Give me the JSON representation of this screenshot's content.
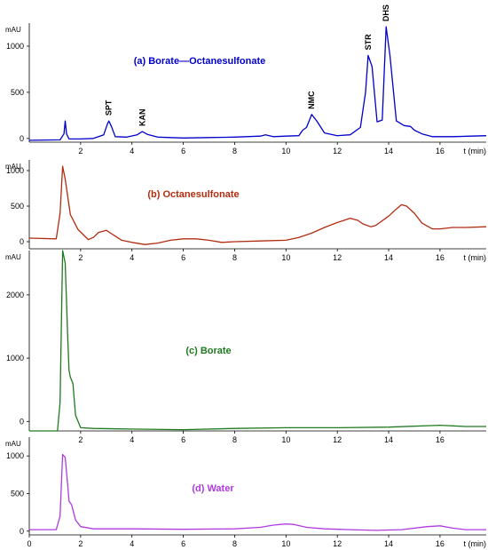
{
  "chart_data": [
    {
      "type": "line",
      "title": "(a) Borate—Octanesulfonate",
      "ylabel": "mAU",
      "xlabel": "t (min)",
      "color": "#0000cc",
      "xlim": [
        0,
        17.8
      ],
      "ylim": [
        -40,
        1250
      ],
      "yticks": [
        0,
        500,
        1000
      ],
      "xticks": [
        2,
        4,
        6,
        8,
        10,
        12,
        14,
        16
      ],
      "x_axis_label_visible": true,
      "peaks": [
        {
          "label": "SPT",
          "x": 3.1,
          "y": 190
        },
        {
          "label": "KAN",
          "x": 4.4,
          "y": 75
        },
        {
          "label": "NMC",
          "x": 11.0,
          "y": 260
        },
        {
          "label": "STR",
          "x": 13.2,
          "y": 900
        },
        {
          "label": "DHS",
          "x": 13.9,
          "y": 1210
        }
      ],
      "x": [
        0,
        1.2,
        1.35,
        1.4,
        1.45,
        1.55,
        2.0,
        2.5,
        2.9,
        3.05,
        3.1,
        3.2,
        3.35,
        3.8,
        4.2,
        4.4,
        4.6,
        5.0,
        6.0,
        7.0,
        8.0,
        9.0,
        9.2,
        9.5,
        10.0,
        10.5,
        10.65,
        10.8,
        11.0,
        11.2,
        11.5,
        12.0,
        12.5,
        12.9,
        13.1,
        13.2,
        13.35,
        13.55,
        13.75,
        13.9,
        14.05,
        14.3,
        14.6,
        14.85,
        15.0,
        15.3,
        15.7,
        16.5,
        17.8
      ],
      "series": [
        {
          "values": [
            -20,
            -15,
            50,
            190,
            50,
            -5,
            -5,
            0,
            40,
            160,
            190,
            130,
            20,
            15,
            40,
            75,
            45,
            15,
            5,
            10,
            15,
            25,
            40,
            20,
            25,
            30,
            90,
            120,
            260,
            190,
            60,
            30,
            40,
            120,
            500,
            900,
            780,
            180,
            200,
            1210,
            900,
            190,
            140,
            130,
            90,
            50,
            20,
            20,
            30
          ]
        }
      ]
    },
    {
      "type": "line",
      "title": "(b) Octanesulfonate",
      "ylabel": "mAU",
      "xlabel": "t (min)",
      "color": "#b22c10",
      "xlim": [
        0,
        17.8
      ],
      "ylim": [
        -100,
        1150
      ],
      "yticks": [
        0,
        500,
        1000
      ],
      "xticks": [
        2,
        4,
        6,
        8,
        10,
        12,
        14,
        16
      ],
      "x_axis_label_visible": true,
      "x": [
        0,
        1.05,
        1.2,
        1.3,
        1.4,
        1.6,
        1.9,
        2.3,
        2.5,
        2.7,
        3.0,
        3.3,
        3.6,
        4.0,
        4.5,
        5.0,
        5.5,
        6.0,
        6.5,
        7.0,
        7.5,
        8.0,
        9.0,
        10.0,
        10.5,
        11.0,
        11.5,
        12.0,
        12.5,
        12.8,
        13.0,
        13.3,
        13.5,
        14.0,
        14.3,
        14.5,
        14.7,
        15.0,
        15.3,
        15.7,
        16.0,
        16.5,
        17.0,
        17.8
      ],
      "series": [
        {
          "values": [
            50,
            40,
            400,
            1060,
            880,
            380,
            170,
            30,
            60,
            130,
            160,
            90,
            20,
            -10,
            -40,
            -20,
            20,
            40,
            40,
            20,
            -10,
            0,
            10,
            20,
            60,
            120,
            200,
            270,
            330,
            300,
            250,
            210,
            230,
            360,
            460,
            520,
            500,
            400,
            260,
            180,
            180,
            200,
            200,
            210
          ]
        }
      ]
    },
    {
      "type": "line",
      "title": "(c) Borate",
      "ylabel": "mAU",
      "xlabel": "t (min)",
      "color": "#1f7a1f",
      "xlim": [
        0,
        17.8
      ],
      "ylim": [
        -150,
        2700
      ],
      "yticks": [
        0,
        1000,
        2000
      ],
      "xticks": [
        2,
        4,
        6,
        8,
        10,
        12,
        14,
        16
      ],
      "x_axis_label_visible": false,
      "x": [
        0,
        1.1,
        1.2,
        1.3,
        1.4,
        1.5,
        1.55,
        1.6,
        1.7,
        1.8,
        2.0,
        2.5,
        4.0,
        6.0,
        8.0,
        10.0,
        12.0,
        14.0,
        16.0,
        17.0,
        17.8
      ],
      "series": [
        {
          "values": [
            -150,
            -150,
            300,
            2700,
            2500,
            1300,
            800,
            700,
            600,
            100,
            -100,
            -110,
            -120,
            -130,
            -110,
            -100,
            -100,
            -90,
            -60,
            -80,
            -80
          ]
        }
      ]
    },
    {
      "type": "line",
      "title": "(d) Water",
      "ylabel": "mAU",
      "xlabel": "t (min)",
      "color": "#b03ae0",
      "xlim": [
        0,
        17.8
      ],
      "ylim": [
        -50,
        1250
      ],
      "yticks": [
        0,
        500,
        1000
      ],
      "xticks": [
        0,
        2,
        4,
        6,
        8,
        10,
        12,
        14,
        16
      ],
      "x_axis_label_visible": true,
      "x": [
        0,
        1.05,
        1.2,
        1.3,
        1.4,
        1.5,
        1.55,
        1.65,
        1.8,
        2.0,
        2.5,
        4.0,
        6.0,
        8.0,
        9.0,
        9.5,
        10.0,
        10.3,
        10.8,
        11.5,
        12.5,
        13.5,
        14.5,
        15.5,
        16.0,
        16.5,
        17.0,
        17.8
      ],
      "series": [
        {
          "values": [
            20,
            20,
            200,
            1020,
            980,
            600,
            400,
            350,
            150,
            60,
            30,
            30,
            25,
            30,
            50,
            80,
            95,
            90,
            50,
            30,
            20,
            10,
            20,
            60,
            70,
            40,
            20,
            20
          ]
        }
      ]
    }
  ]
}
